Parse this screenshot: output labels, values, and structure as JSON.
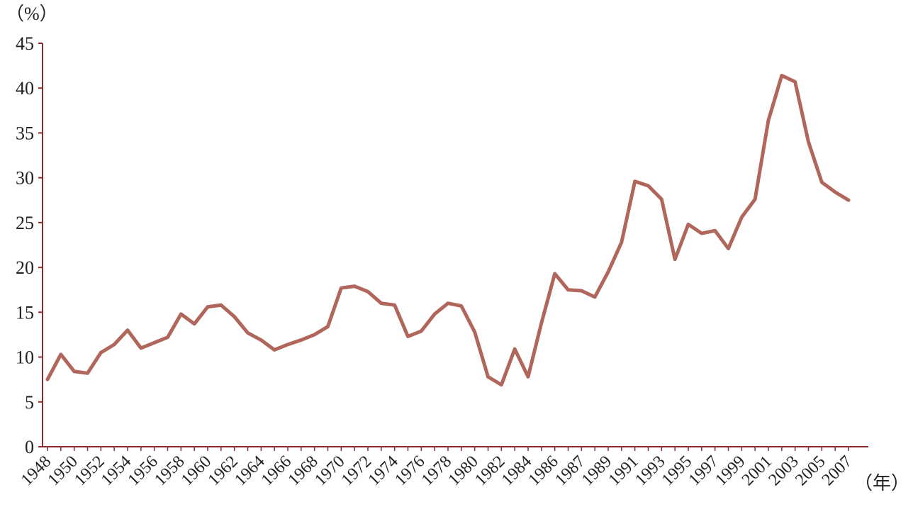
{
  "chart_data": {
    "type": "line",
    "y_label": "（%）",
    "x_label": "（年）",
    "categories": [
      "1948",
      null,
      "1950",
      null,
      "1952",
      null,
      "1954",
      null,
      "1956",
      null,
      "1958",
      null,
      "1960",
      null,
      "1962",
      null,
      "1964",
      null,
      "1966",
      null,
      "1968",
      null,
      "1970",
      null,
      "1972",
      null,
      "1974",
      null,
      "1976",
      null,
      "1978",
      null,
      "1980",
      null,
      "1982",
      null,
      "1984",
      null,
      "1986",
      null,
      "1987",
      null,
      "1989",
      null,
      "1991",
      null,
      "1993",
      null,
      "1995",
      null,
      "1997",
      null,
      "1999",
      null,
      "2001",
      null,
      "2003",
      null,
      "2005",
      null,
      "2007"
    ],
    "values": [
      7.5,
      10.3,
      8.4,
      8.2,
      10.5,
      11.4,
      13.0,
      11.0,
      11.6,
      12.2,
      14.8,
      13.7,
      15.6,
      15.8,
      14.5,
      12.7,
      11.9,
      10.8,
      11.4,
      11.9,
      12.5,
      13.4,
      17.7,
      17.9,
      17.3,
      16.0,
      15.8,
      12.3,
      12.9,
      14.8,
      16.0,
      15.7,
      12.8,
      7.8,
      6.9,
      10.9,
      7.8,
      13.8,
      19.3,
      17.5,
      17.4,
      16.7,
      19.5,
      22.8,
      29.6,
      29.1,
      27.6,
      20.9,
      24.8,
      23.8,
      24.1,
      22.1,
      25.6,
      27.6,
      36.4,
      41.4,
      40.7,
      34.0,
      29.5,
      28.4,
      27.5
    ],
    "color": "#b0665a",
    "axis_color": "#8a2c2c",
    "ylim": [
      0,
      45
    ],
    "yticks": [
      0,
      5,
      10,
      15,
      20,
      25,
      30,
      35,
      40,
      45
    ]
  }
}
